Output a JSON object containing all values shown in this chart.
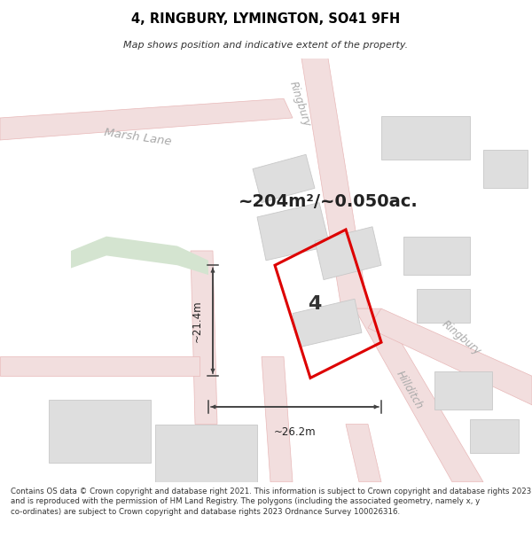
{
  "title": "4, RINGBURY, LYMINGTON, SO41 9FH",
  "subtitle": "Map shows position and indicative extent of the property.",
  "area_text": "~204m²/~0.050ac.",
  "plot_number": "4",
  "width_label": "~26.2m",
  "height_label": "~21.4m",
  "footer_text": "Contains OS data © Crown copyright and database right 2021. This information is subject to Crown copyright and database rights 2023 and is reproduced with the permission of HM Land Registry. The polygons (including the associated geometry, namely x, y co-ordinates) are subject to Crown copyright and database rights 2023 Ordnance Survey 100026316.",
  "map_bg": "#f7f7f5",
  "road_fill": "#f2dede",
  "road_edge": "#e8b8b8",
  "building_face": "#dedede",
  "building_edge": "#c8c8c8",
  "green_face": "#d4e4d0",
  "highlight_color": "#dd0000",
  "dim_color": "#404040",
  "label_color": "#aaaaaa",
  "text_color": "#222222"
}
